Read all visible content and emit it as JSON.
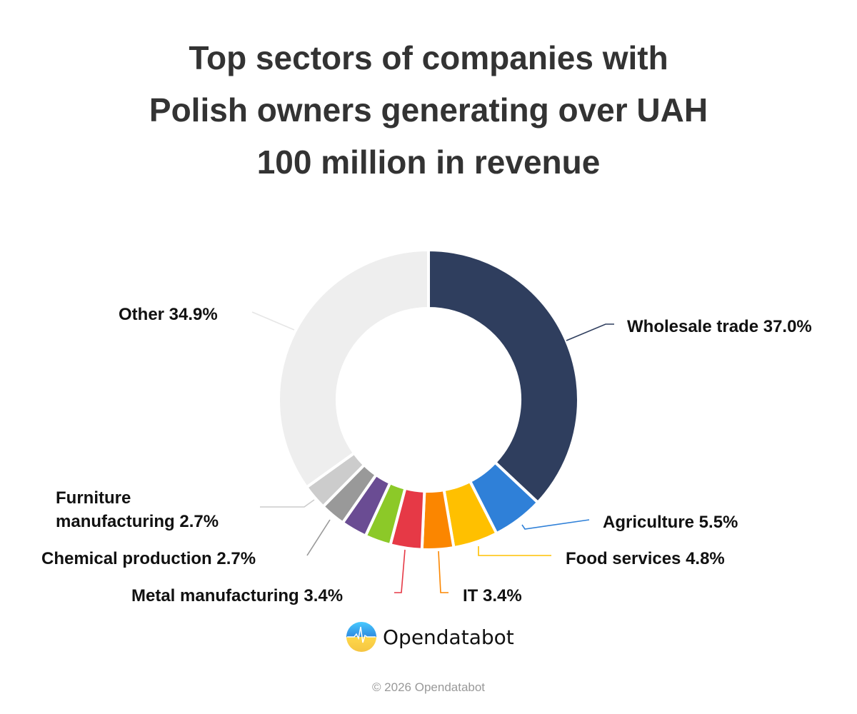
{
  "title_lines": [
    "Top sectors of companies with",
    "Polish owners generating over UAH",
    "100 million in revenue"
  ],
  "chart_data": {
    "type": "pie",
    "donut": true,
    "title": "Top sectors of companies with Polish owners generating over UAH 100 million in revenue",
    "unit": "%",
    "slices": [
      {
        "name": "Wholesale trade",
        "value": 37.0,
        "label": "Wholesale trade 37.0%",
        "color": "#2f3e5e"
      },
      {
        "name": "Agriculture",
        "value": 5.5,
        "label": "Agriculture 5.5%",
        "color": "#2f80d8"
      },
      {
        "name": "Food services",
        "value": 4.8,
        "label": "Food services 4.8%",
        "color": "#ffc000"
      },
      {
        "name": "IT",
        "value": 3.4,
        "label": "IT 3.4%",
        "color": "#fb8600"
      },
      {
        "name": "Metal manufacturing",
        "value": 3.4,
        "label": "Metal manufacturing 3.4%",
        "color": "#e63946"
      },
      {
        "name": "",
        "value": 2.8,
        "label": null,
        "color": "#8cc928"
      },
      {
        "name": "",
        "value": 2.8,
        "label": null,
        "color": "#6a4c93"
      },
      {
        "name": "Chemical production",
        "value": 2.7,
        "label": "Chemical production 2.7%",
        "color": "#999999"
      },
      {
        "name": "Furniture manufacturing",
        "value": 2.7,
        "label": "Furniture manufacturing 2.7%",
        "label_lines": [
          "Furniture",
          "manufacturing 2.7%"
        ],
        "color": "#cccccc"
      },
      {
        "name": "Other",
        "value": 34.9,
        "label": "Other 34.9%",
        "color": "#eeeeee"
      }
    ]
  },
  "logo": {
    "text": "Opendatabot"
  },
  "copyright": "© 2026 Opendatabot"
}
